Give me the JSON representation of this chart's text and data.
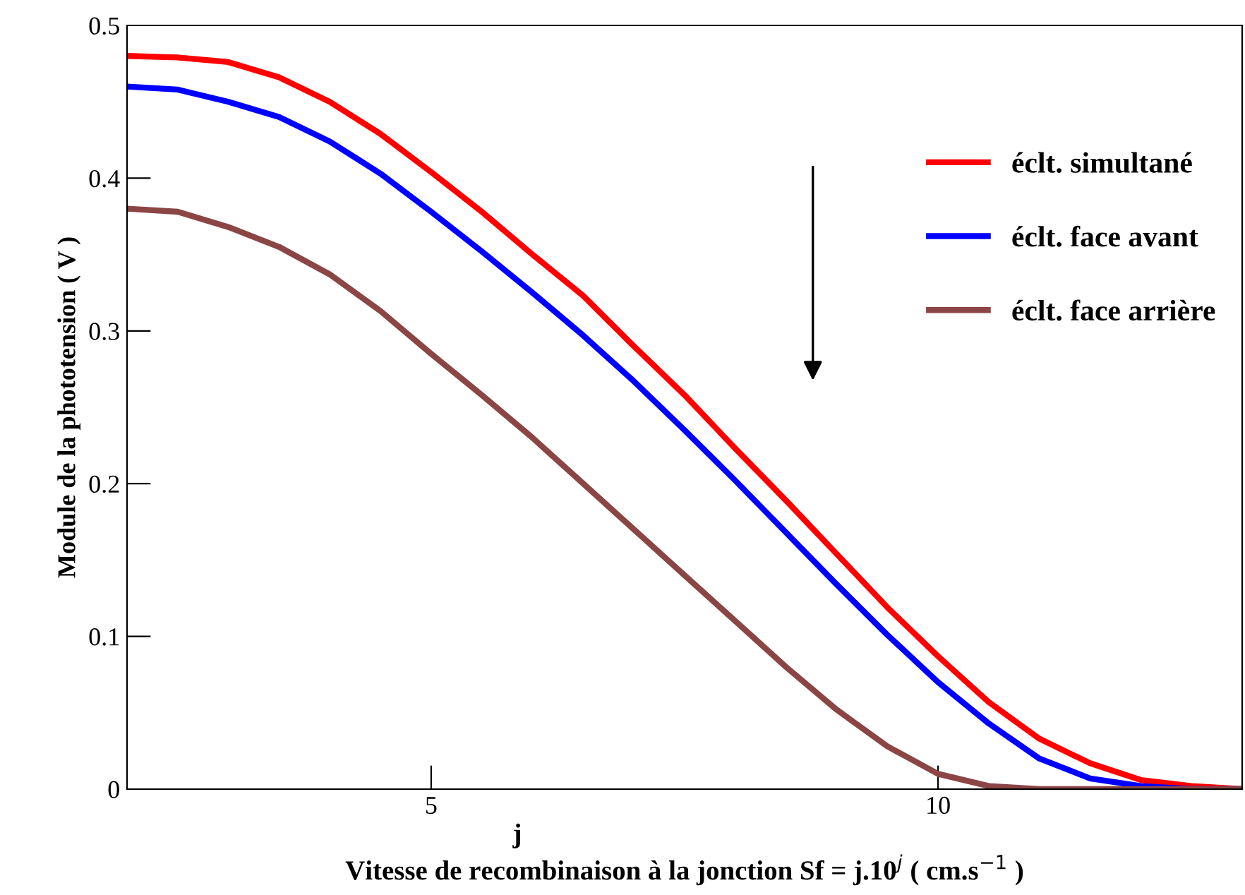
{
  "chart_data": {
    "type": "line",
    "xlabel": "Vitesse de recombinaison à la jonction Sf = j.10$^{j}$ ( cm.s$^{−1}$ )",
    "ylabel": "Module de la phototension ( V )",
    "annotations": [
      "j"
    ],
    "x": [
      2,
      2.5,
      3,
      3.5,
      4,
      4.5,
      5,
      5.5,
      6,
      6.5,
      7,
      7.5,
      8,
      8.5,
      9,
      9.5,
      10,
      10.5,
      11,
      11.5,
      12,
      12.5,
      13
    ],
    "series": [
      {
        "name": "éclt. simultané",
        "color": "#ff0000",
        "values": [
          0.48,
          0.479,
          0.476,
          0.466,
          0.45,
          0.429,
          0.404,
          0.378,
          0.35,
          0.323,
          0.29,
          0.258,
          0.223,
          0.189,
          0.154,
          0.119,
          0.087,
          0.057,
          0.033,
          0.017,
          0.006,
          0.002,
          0
        ]
      },
      {
        "name": "éclt. face avant",
        "color": "#0000ff",
        "values": [
          0.46,
          0.458,
          0.45,
          0.44,
          0.424,
          0.403,
          0.378,
          0.352,
          0.325,
          0.297,
          0.267,
          0.235,
          0.202,
          0.168,
          0.134,
          0.101,
          0.07,
          0.043,
          0.02,
          0.007,
          0.002,
          0,
          0
        ]
      },
      {
        "name": "éclt. face arrière",
        "color": "#8b4545",
        "values": [
          0.38,
          0.378,
          0.368,
          0.355,
          0.337,
          0.313,
          0.285,
          0.258,
          0.23,
          0.2,
          0.17,
          0.14,
          0.11,
          0.08,
          0.052,
          0.028,
          0.01,
          0.002,
          0,
          0,
          0,
          0,
          0
        ]
      }
    ],
    "xlim": [
      2,
      13
    ],
    "ylim": [
      0,
      0.5
    ],
    "xticks": [
      5,
      10
    ],
    "yticks": [
      0,
      0.1,
      0.2,
      0.3,
      0.4,
      0.5
    ],
    "grid": false,
    "legend": "right",
    "marker": "none",
    "line_style": "solid"
  }
}
